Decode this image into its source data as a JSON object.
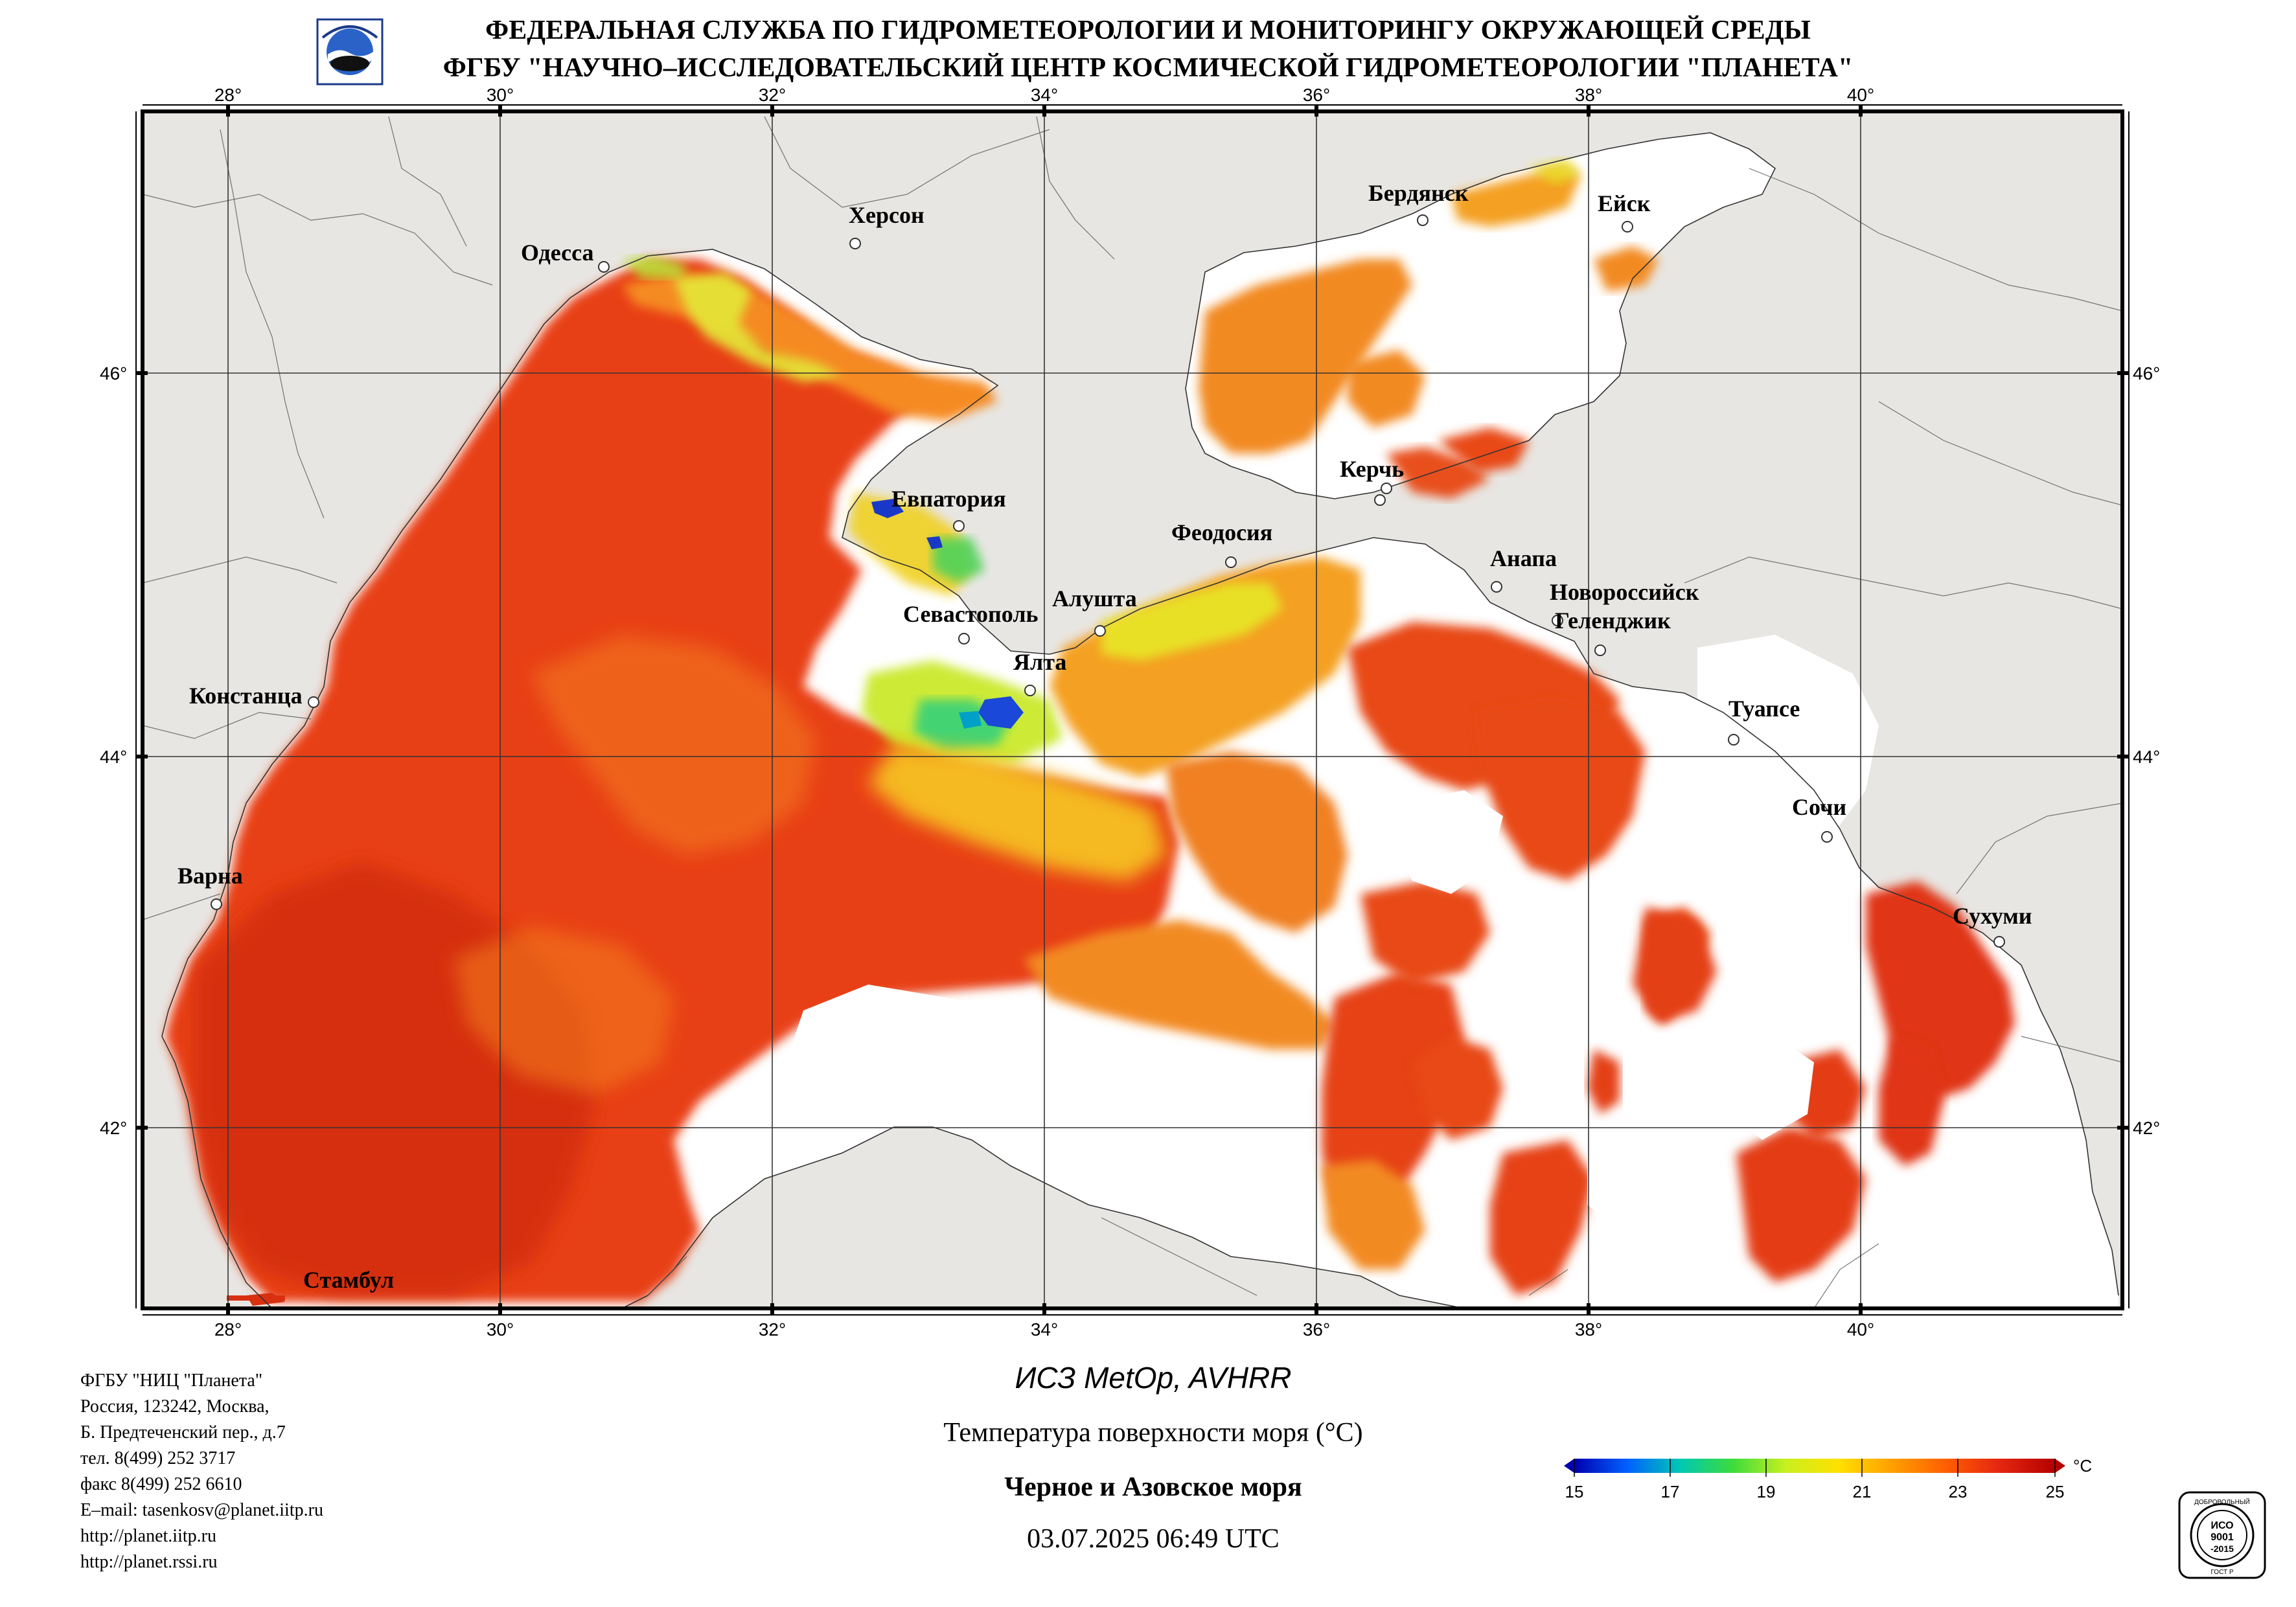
{
  "header": {
    "line1": "ФЕДЕРАЛЬНАЯ СЛУЖБА ПО ГИДРОМЕТЕОРОЛОГИИ И МОНИТОРИНГУ ОКРУЖАЮЩЕЙ СРЕДЫ",
    "line2": "ФГБУ \"НАУЧНО–ИССЛЕДОВАТЕЛЬСКИЙ ЦЕНТР КОСМИЧЕСКОЙ ГИДРОМЕТЕОРОЛОГИИ \"ПЛАНЕТА\""
  },
  "map": {
    "lon_labels": [
      "28°",
      "30°",
      "32°",
      "34°",
      "36°",
      "38°",
      "40°"
    ],
    "lat_labels": [
      "46°",
      "44°",
      "42°"
    ],
    "cities": {
      "odessa": "Одесса",
      "kherson": "Херсон",
      "berdyansk": "Бердянск",
      "yeysk": "Ейск",
      "kerch": "Керчь",
      "yevpatoria": "Евпатория",
      "feodosia": "Феодосия",
      "anapa": "Анапа",
      "novorossiysk": "Новороссийск",
      "gelendzhik": "Геленджик",
      "sevastopol": "Севастополь",
      "alushta": "Алушта",
      "yalta": "Ялта",
      "constanta": "Констанца",
      "tuapse": "Туапсе",
      "sochi": "Сочи",
      "varna": "Варна",
      "sukhumi": "Сухуми",
      "istanbul": "Стамбул"
    }
  },
  "footer": {
    "org": "ФГБУ \"НИЦ \"Планета\"",
    "address1": "Россия, 123242, Москва,",
    "address2": "Б. Предтеченский пер., д.7",
    "phone": "тел. 8(499) 252 3717",
    "fax": "факс 8(499) 252 6610",
    "email": "E–mail: tasenkosv@planet.iitp.ru",
    "url1": "http://planet.iitp.ru",
    "url2": "http://planet.rssi.ru"
  },
  "product": {
    "satellite": "ИСЗ MetOp, AVHRR",
    "parameter": "Температура поверхности моря (°С)",
    "region": "Черное и Азовское моря",
    "datetime": "03.07.2025 06:49 UTC"
  },
  "scale": {
    "unit": "°С",
    "labels": [
      "15",
      "17",
      "19",
      "21",
      "23",
      "25"
    ],
    "colors": [
      "#0000b0",
      "#0060ff",
      "#00c8b4",
      "#3cdc3c",
      "#c8f020",
      "#ffe000",
      "#ffa000",
      "#ff6000",
      "#e62810",
      "#b40000"
    ]
  },
  "iso_badge": {
    "top_text": "ДОБРОВОЛЬНЫЙ",
    "line1": "ИСО",
    "line2": "9001",
    "line3": "-2015",
    "bottom_text": "ГОСТ Р"
  }
}
